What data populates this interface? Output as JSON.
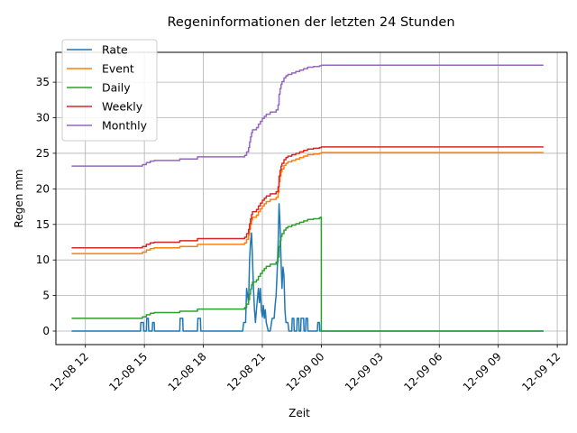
{
  "chart_data": {
    "type": "line",
    "title": "Regeninformationen der letzten 24 Stunden",
    "xlabel": "Zeit",
    "ylabel": "Regen mm",
    "xlim": [
      10.5,
      36.5
    ],
    "ylim": [
      -1.9,
      39.2
    ],
    "grid": true,
    "legend_position": "top-left",
    "x_ticks": [
      {
        "value": 12,
        "label": "12-08 12"
      },
      {
        "value": 15,
        "label": "12-08 15"
      },
      {
        "value": 18,
        "label": "12-08 18"
      },
      {
        "value": 21,
        "label": "12-08 21"
      },
      {
        "value": 24,
        "label": "12-09 00"
      },
      {
        "value": 27,
        "label": "12-09 03"
      },
      {
        "value": 30,
        "label": "12-09 06"
      },
      {
        "value": 33,
        "label": "12-09 09"
      },
      {
        "value": 36,
        "label": "12-09 12"
      }
    ],
    "y_ticks": [
      0,
      5,
      10,
      15,
      20,
      25,
      30,
      35
    ],
    "series": [
      {
        "name": "Rate",
        "color": "#1f77b4",
        "step": false,
        "points": [
          [
            11.3,
            0
          ],
          [
            14.8,
            0
          ],
          [
            14.82,
            1.2
          ],
          [
            14.95,
            1.2
          ],
          [
            14.97,
            0
          ],
          [
            15.1,
            0
          ],
          [
            15.12,
            1.8
          ],
          [
            15.2,
            1.8
          ],
          [
            15.22,
            0
          ],
          [
            15.4,
            0
          ],
          [
            15.42,
            1.2
          ],
          [
            15.5,
            1.2
          ],
          [
            15.52,
            0
          ],
          [
            16.8,
            0
          ],
          [
            16.82,
            1.8
          ],
          [
            16.95,
            1.8
          ],
          [
            16.97,
            0
          ],
          [
            17.7,
            0
          ],
          [
            17.72,
            1.8
          ],
          [
            17.85,
            1.8
          ],
          [
            17.87,
            0
          ],
          [
            20.0,
            0
          ],
          [
            20.05,
            1.2
          ],
          [
            20.15,
            1.2
          ],
          [
            20.2,
            6
          ],
          [
            20.3,
            4
          ],
          [
            20.35,
            10
          ],
          [
            20.4,
            12.5
          ],
          [
            20.45,
            13.8
          ],
          [
            20.5,
            10
          ],
          [
            20.55,
            6
          ],
          [
            20.6,
            3
          ],
          [
            20.65,
            1.2
          ],
          [
            20.7,
            3
          ],
          [
            20.8,
            6
          ],
          [
            20.85,
            4
          ],
          [
            20.9,
            6
          ],
          [
            20.95,
            3
          ],
          [
            21.0,
            2
          ],
          [
            21.05,
            3.6
          ],
          [
            21.1,
            1.8
          ],
          [
            21.15,
            3
          ],
          [
            21.2,
            1.2
          ],
          [
            21.3,
            0
          ],
          [
            21.4,
            0
          ],
          [
            21.5,
            1.8
          ],
          [
            21.6,
            1.8
          ],
          [
            21.65,
            3.6
          ],
          [
            21.7,
            5
          ],
          [
            21.75,
            8
          ],
          [
            21.8,
            12
          ],
          [
            21.85,
            17.9
          ],
          [
            21.9,
            15
          ],
          [
            21.95,
            10
          ],
          [
            22.0,
            6
          ],
          [
            22.05,
            9
          ],
          [
            22.1,
            7.8
          ],
          [
            22.15,
            3
          ],
          [
            22.2,
            1.2
          ],
          [
            22.3,
            1.2
          ],
          [
            22.35,
            0
          ],
          [
            22.5,
            0
          ],
          [
            22.52,
            1.8
          ],
          [
            22.6,
            1.8
          ],
          [
            22.62,
            0
          ],
          [
            22.75,
            0
          ],
          [
            22.77,
            1.8
          ],
          [
            22.85,
            1.8
          ],
          [
            22.87,
            0
          ],
          [
            22.95,
            0
          ],
          [
            22.97,
            1.8
          ],
          [
            23.1,
            1.8
          ],
          [
            23.12,
            0
          ],
          [
            23.2,
            0
          ],
          [
            23.22,
            1.8
          ],
          [
            23.3,
            1.8
          ],
          [
            23.32,
            0
          ],
          [
            23.8,
            0
          ],
          [
            23.82,
            1.2
          ],
          [
            23.9,
            1.2
          ],
          [
            23.92,
            0
          ],
          [
            35.3,
            0
          ]
        ]
      },
      {
        "name": "Event",
        "color": "#ff7f0e",
        "step": true,
        "points": [
          [
            11.3,
            10.9
          ],
          [
            14.8,
            10.9
          ],
          [
            14.9,
            11.1
          ],
          [
            15.1,
            11.4
          ],
          [
            15.3,
            11.6
          ],
          [
            15.5,
            11.7
          ],
          [
            16.8,
            11.9
          ],
          [
            17.7,
            12.2
          ],
          [
            20.1,
            12.4
          ],
          [
            20.2,
            12.9
          ],
          [
            20.3,
            13.5
          ],
          [
            20.35,
            14.3
          ],
          [
            20.4,
            15
          ],
          [
            20.45,
            15.6
          ],
          [
            20.5,
            16
          ],
          [
            20.7,
            16.3
          ],
          [
            20.8,
            16.8
          ],
          [
            20.9,
            17.2
          ],
          [
            21.0,
            17.6
          ],
          [
            21.1,
            17.9
          ],
          [
            21.2,
            18.2
          ],
          [
            21.4,
            18.5
          ],
          [
            21.7,
            18.8
          ],
          [
            21.8,
            19.5
          ],
          [
            21.85,
            21
          ],
          [
            21.9,
            21.8
          ],
          [
            21.95,
            22.4
          ],
          [
            22.0,
            22.8
          ],
          [
            22.1,
            23.3
          ],
          [
            22.2,
            23.6
          ],
          [
            22.3,
            23.8
          ],
          [
            22.5,
            24.0
          ],
          [
            22.7,
            24.2
          ],
          [
            22.9,
            24.4
          ],
          [
            23.1,
            24.6
          ],
          [
            23.3,
            24.8
          ],
          [
            23.6,
            24.9
          ],
          [
            23.9,
            25.0
          ],
          [
            24.0,
            25.1
          ],
          [
            35.3,
            25.1
          ]
        ]
      },
      {
        "name": "Daily",
        "color": "#2ca02c",
        "step": true,
        "points": [
          [
            11.3,
            1.8
          ],
          [
            14.8,
            1.8
          ],
          [
            14.9,
            2.0
          ],
          [
            15.1,
            2.3
          ],
          [
            15.3,
            2.5
          ],
          [
            15.5,
            2.6
          ],
          [
            16.8,
            2.8
          ],
          [
            17.7,
            3.1
          ],
          [
            20.1,
            3.3
          ],
          [
            20.2,
            3.8
          ],
          [
            20.3,
            4.4
          ],
          [
            20.35,
            5.2
          ],
          [
            20.4,
            5.9
          ],
          [
            20.45,
            6.5
          ],
          [
            20.5,
            6.9
          ],
          [
            20.7,
            7.2
          ],
          [
            20.8,
            7.7
          ],
          [
            20.9,
            8.1
          ],
          [
            21.0,
            8.5
          ],
          [
            21.1,
            8.8
          ],
          [
            21.2,
            9.1
          ],
          [
            21.4,
            9.4
          ],
          [
            21.7,
            9.7
          ],
          [
            21.8,
            10.4
          ],
          [
            21.85,
            11.9
          ],
          [
            21.9,
            12.7
          ],
          [
            21.95,
            13.3
          ],
          [
            22.0,
            13.7
          ],
          [
            22.1,
            14.2
          ],
          [
            22.2,
            14.5
          ],
          [
            22.3,
            14.7
          ],
          [
            22.5,
            14.9
          ],
          [
            22.7,
            15.1
          ],
          [
            22.9,
            15.3
          ],
          [
            23.1,
            15.5
          ],
          [
            23.3,
            15.7
          ],
          [
            23.6,
            15.8
          ],
          [
            23.9,
            15.9
          ],
          [
            23.95,
            16.0
          ],
          [
            24.0,
            0
          ],
          [
            35.3,
            0
          ]
        ]
      },
      {
        "name": "Weekly",
        "color": "#d62728",
        "step": true,
        "points": [
          [
            11.3,
            11.7
          ],
          [
            14.8,
            11.7
          ],
          [
            14.9,
            11.9
          ],
          [
            15.1,
            12.2
          ],
          [
            15.3,
            12.4
          ],
          [
            15.5,
            12.5
          ],
          [
            16.8,
            12.7
          ],
          [
            17.7,
            13.0
          ],
          [
            20.1,
            13.2
          ],
          [
            20.2,
            13.7
          ],
          [
            20.3,
            14.3
          ],
          [
            20.35,
            15.1
          ],
          [
            20.4,
            15.8
          ],
          [
            20.45,
            16.4
          ],
          [
            20.5,
            16.8
          ],
          [
            20.7,
            17.1
          ],
          [
            20.8,
            17.6
          ],
          [
            20.9,
            18.0
          ],
          [
            21.0,
            18.4
          ],
          [
            21.1,
            18.7
          ],
          [
            21.2,
            19.0
          ],
          [
            21.4,
            19.3
          ],
          [
            21.7,
            19.6
          ],
          [
            21.8,
            20.3
          ],
          [
            21.85,
            21.8
          ],
          [
            21.9,
            22.6
          ],
          [
            21.95,
            23.2
          ],
          [
            22.0,
            23.6
          ],
          [
            22.1,
            24.1
          ],
          [
            22.2,
            24.4
          ],
          [
            22.3,
            24.6
          ],
          [
            22.5,
            24.8
          ],
          [
            22.7,
            25.0
          ],
          [
            22.9,
            25.2
          ],
          [
            23.1,
            25.4
          ],
          [
            23.3,
            25.6
          ],
          [
            23.6,
            25.7
          ],
          [
            23.9,
            25.8
          ],
          [
            24.0,
            25.9
          ],
          [
            35.3,
            25.9
          ]
        ]
      },
      {
        "name": "Monthly",
        "color": "#9467bd",
        "step": true,
        "points": [
          [
            11.3,
            23.2
          ],
          [
            14.8,
            23.2
          ],
          [
            14.9,
            23.4
          ],
          [
            15.1,
            23.7
          ],
          [
            15.3,
            23.9
          ],
          [
            15.5,
            24.0
          ],
          [
            16.8,
            24.2
          ],
          [
            17.7,
            24.5
          ],
          [
            20.1,
            24.7
          ],
          [
            20.2,
            25.2
          ],
          [
            20.3,
            25.8
          ],
          [
            20.35,
            26.6
          ],
          [
            20.4,
            27.3
          ],
          [
            20.45,
            27.9
          ],
          [
            20.5,
            28.3
          ],
          [
            20.7,
            28.6
          ],
          [
            20.8,
            29.1
          ],
          [
            20.9,
            29.5
          ],
          [
            21.0,
            29.9
          ],
          [
            21.1,
            30.2
          ],
          [
            21.2,
            30.5
          ],
          [
            21.4,
            30.8
          ],
          [
            21.7,
            31.1
          ],
          [
            21.8,
            31.8
          ],
          [
            21.85,
            33.3
          ],
          [
            21.9,
            34.1
          ],
          [
            21.95,
            34.7
          ],
          [
            22.0,
            35.1
          ],
          [
            22.1,
            35.6
          ],
          [
            22.2,
            35.9
          ],
          [
            22.3,
            36.1
          ],
          [
            22.5,
            36.3
          ],
          [
            22.7,
            36.5
          ],
          [
            22.9,
            36.7
          ],
          [
            23.1,
            36.9
          ],
          [
            23.3,
            37.1
          ],
          [
            23.6,
            37.2
          ],
          [
            23.9,
            37.3
          ],
          [
            24.0,
            37.4
          ],
          [
            35.3,
            37.4
          ]
        ]
      }
    ]
  }
}
